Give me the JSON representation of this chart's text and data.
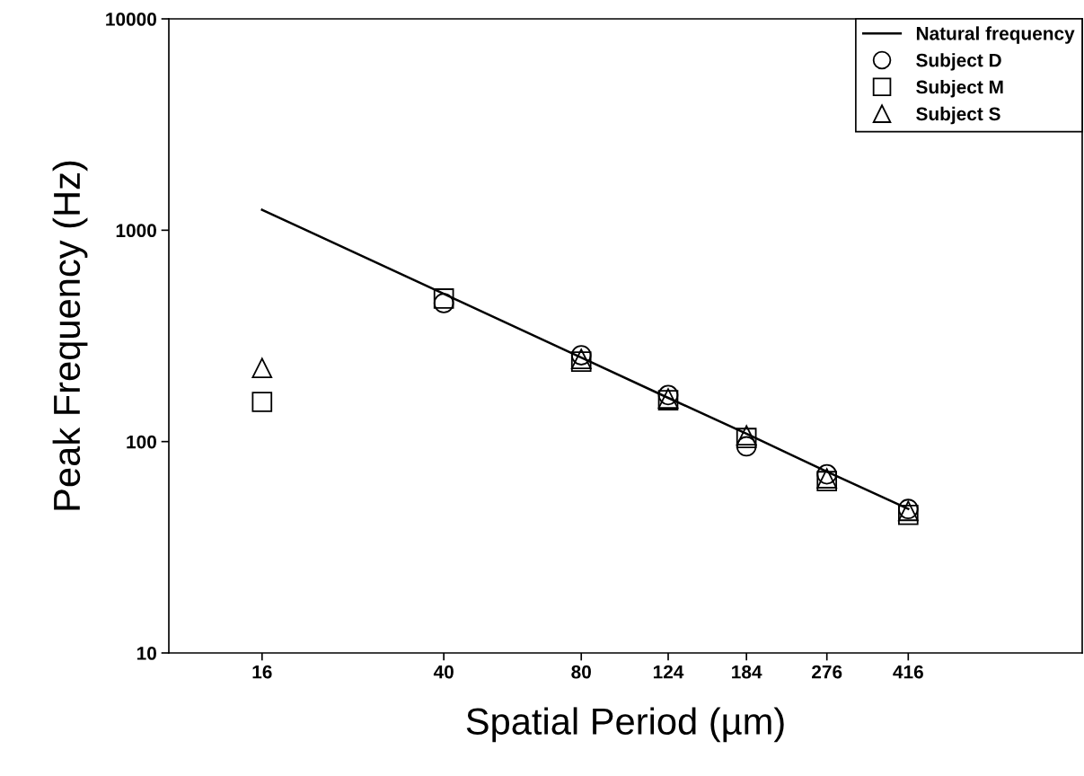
{
  "chart_data": {
    "type": "scatter",
    "xlabel": "Spatial Period (µm)",
    "ylabel": "Peak Frequency (Hz)",
    "log": "xy",
    "xlim": [
      10,
      1000
    ],
    "xticks": [
      16,
      40,
      80,
      124,
      184,
      276,
      416
    ],
    "ylim": [
      10,
      10000
    ],
    "yticks": [
      10,
      100,
      1000,
      10000
    ],
    "grid": false,
    "legend": "top right",
    "series": [
      {
        "name": "Natural frequency",
        "type": "line",
        "color": "#000000",
        "marker": "none",
        "line_style": "solid",
        "x": [
          16,
          40,
          80,
          124,
          184,
          276,
          416
        ],
        "values": [
          1250,
          500,
          250,
          161,
          109,
          72,
          48
        ]
      },
      {
        "name": "Subject D",
        "color": "#000000",
        "marker": "circle",
        "x": [
          40,
          80,
          124,
          184,
          276,
          416
        ],
        "values": [
          452,
          256,
          166,
          95,
          70,
          48
        ]
      },
      {
        "name": "Subject M",
        "color": "#000000",
        "marker": "square",
        "x": [
          16,
          40,
          80,
          124,
          184,
          276,
          416
        ],
        "values": [
          154,
          475,
          239,
          157,
          104,
          65,
          45
        ]
      },
      {
        "name": "Subject S",
        "color": "#000000",
        "marker": "triangle",
        "x": [
          16,
          80,
          124,
          184,
          276,
          416
        ],
        "values": [
          223,
          246,
          160,
          107,
          67,
          47
        ]
      }
    ]
  }
}
